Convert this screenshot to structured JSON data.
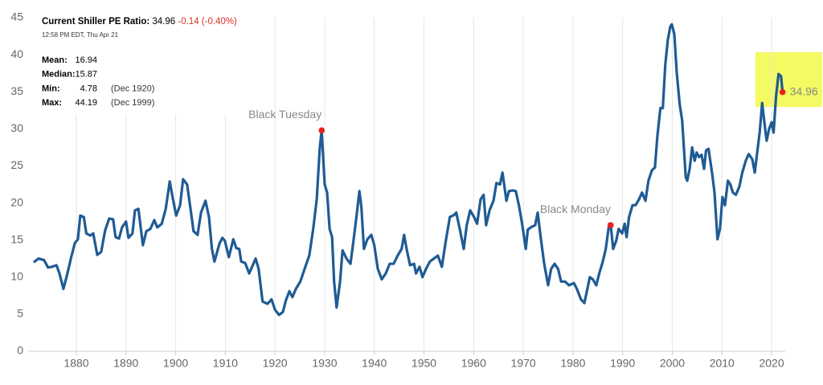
{
  "chart_data": {
    "type": "line",
    "color": "#1f5b94",
    "marker_color": "#e8211d",
    "grid": "x",
    "xlim": [
      1871,
      2024
    ],
    "ylim": [
      0,
      45
    ],
    "xticks": [
      1880,
      1890,
      1900,
      1910,
      1920,
      1930,
      1940,
      1950,
      1960,
      1970,
      1980,
      1990,
      2000,
      2010,
      2020
    ],
    "yticks": [
      0,
      5,
      10,
      15,
      20,
      25,
      30,
      35,
      40,
      45
    ],
    "x": [
      1871.4,
      1872.4,
      1873.5,
      1874.3,
      1875.1,
      1876,
      1876.6,
      1877.4,
      1878.2,
      1878.9,
      1879.7,
      1880.3,
      1880.8,
      1881.5,
      1882,
      1882.8,
      1883.4,
      1884.2,
      1885,
      1885.8,
      1886.6,
      1887.4,
      1887.9,
      1888.6,
      1889.2,
      1890,
      1890.5,
      1891.3,
      1891.8,
      1892.5,
      1893.4,
      1894.1,
      1894.9,
      1895.7,
      1896.3,
      1897.2,
      1898,
      1898.8,
      1899.4,
      1900.1,
      1900.9,
      1901.5,
      1902.3,
      1903.1,
      1903.6,
      1904.4,
      1905.1,
      1906,
      1906.7,
      1907.3,
      1907.8,
      1908.8,
      1909.4,
      1909.9,
      1910.7,
      1911.6,
      1912.2,
      1912.8,
      1913.2,
      1914,
      1914.8,
      1916.1,
      1916.7,
      1917.5,
      1918.5,
      1919.3,
      1920,
      1920.8,
      1921.6,
      1922.2,
      1922.9,
      1923.5,
      1924.2,
      1925.1,
      1926.1,
      1926.9,
      1927.7,
      1928.4,
      1929,
      1929.4,
      1930,
      1930.5,
      1931,
      1931.5,
      1931.9,
      1932.4,
      1933.1,
      1933.6,
      1934.4,
      1935.2,
      1935.8,
      1936.3,
      1937,
      1937.4,
      1937.9,
      1938.6,
      1939.4,
      1940,
      1940.7,
      1941.5,
      1942.3,
      1943.1,
      1943.9,
      1944.7,
      1945.5,
      1946,
      1946.5,
      1947.2,
      1948,
      1948.4,
      1949.1,
      1949.7,
      1950.4,
      1951.2,
      1952,
      1952.8,
      1953.6,
      1954.4,
      1955.2,
      1956.1,
      1956.5,
      1957.3,
      1958,
      1958.6,
      1959.3,
      1960.1,
      1960.7,
      1961.4,
      1962,
      1962.5,
      1963.2,
      1964,
      1964.6,
      1965.3,
      1965.8,
      1966.6,
      1967.1,
      1967.9,
      1968.5,
      1969.2,
      1969.8,
      1970.5,
      1970.9,
      1971.7,
      1972.4,
      1972.9,
      1973.5,
      1974.2,
      1975,
      1975.6,
      1976.3,
      1977,
      1977.6,
      1978.4,
      1979.2,
      1980.2,
      1980.8,
      1981.6,
      1982.3,
      1982.8,
      1983.4,
      1984,
      1984.7,
      1985.3,
      1986,
      1986.6,
      1987.3,
      1987.6,
      1988.1,
      1988.7,
      1989.2,
      1989.9,
      1990.4,
      1990.8,
      1991.3,
      1992,
      1992.6,
      1993.3,
      1993.9,
      1994.6,
      1995.2,
      1995.9,
      1996.5,
      1997,
      1997.6,
      1998.1,
      1998.6,
      1999.1,
      1999.6,
      1999.9,
      2000.4,
      2000.9,
      2001.5,
      2002,
      2002.7,
      2003,
      2003.5,
      2004,
      2004.5,
      2004.9,
      2005.4,
      2005.9,
      2006.4,
      2006.8,
      2007.3,
      2008,
      2008.5,
      2009.1,
      2009.6,
      2010.1,
      2010.6,
      2011.2,
      2011.7,
      2012.2,
      2012.8,
      2013.5,
      2014.1,
      2014.8,
      2015.4,
      2016.1,
      2016.6,
      2017.1,
      2017.6,
      2018.1,
      2018.5,
      2019,
      2019.5,
      2020,
      2020.4,
      2020.9,
      2021.4,
      2021.9,
      2022.2
    ],
    "values": [
      12.0,
      12.5,
      12.3,
      11.3,
      11.4,
      11.6,
      10.5,
      8.4,
      10.5,
      12.5,
      14.6,
      15.1,
      18.3,
      18.1,
      15.9,
      15.6,
      15.9,
      13.0,
      13.4,
      16.3,
      17.9,
      17.8,
      15.4,
      15.2,
      16.7,
      17.5,
      15.3,
      15.9,
      19.0,
      19.2,
      14.3,
      16.2,
      16.5,
      17.7,
      16.7,
      17.2,
      19.2,
      22.9,
      20.7,
      18.3,
      19.7,
      23.2,
      22.5,
      18.7,
      16.2,
      15.7,
      18.7,
      20.3,
      18.1,
      13.8,
      12.1,
      14.5,
      15.3,
      14.9,
      12.7,
      15.1,
      13.9,
      13.8,
      12.1,
      11.9,
      10.5,
      12.5,
      11.1,
      6.7,
      6.4,
      7.0,
      5.6,
      4.9,
      5.3,
      6.9,
      8.1,
      7.3,
      8.4,
      9.4,
      11.4,
      12.9,
      16.5,
      20.5,
      27.3,
      29.8,
      22.5,
      21.4,
      16.5,
      15.4,
      9.4,
      5.9,
      9.4,
      13.6,
      12.5,
      11.8,
      14.9,
      17.6,
      21.6,
      19.4,
      13.8,
      15.1,
      15.7,
      14.3,
      11.1,
      9.7,
      10.5,
      11.8,
      11.8,
      12.9,
      13.8,
      15.7,
      13.8,
      11.6,
      11.8,
      10.5,
      11.4,
      10.0,
      11.1,
      12.1,
      12.5,
      12.9,
      11.4,
      14.9,
      18.1,
      18.4,
      18.7,
      16.2,
      13.8,
      17.0,
      19.0,
      18.1,
      17.2,
      20.5,
      21.1,
      17.0,
      19.0,
      20.3,
      22.7,
      22.5,
      24.1,
      20.3,
      21.6,
      21.7,
      21.6,
      19.4,
      17.0,
      13.8,
      16.4,
      16.8,
      17.0,
      18.7,
      15.4,
      11.8,
      8.9,
      11.1,
      11.8,
      11.1,
      9.4,
      9.4,
      8.9,
      9.2,
      8.4,
      7.0,
      6.5,
      8.1,
      10.0,
      9.7,
      8.9,
      10.5,
      12.1,
      13.8,
      17.2,
      17.0,
      13.8,
      14.9,
      16.5,
      15.9,
      17.2,
      15.4,
      18.1,
      19.7,
      19.7,
      20.5,
      21.4,
      20.3,
      23.0,
      24.4,
      24.8,
      29.0,
      32.8,
      32.8,
      38.7,
      42.0,
      43.8,
      44.1,
      42.8,
      37.6,
      33.3,
      31.1,
      23.5,
      23.0,
      24.6,
      27.5,
      25.7,
      26.8,
      26.2,
      26.5,
      24.6,
      27.1,
      27.3,
      24.1,
      21.4,
      15.1,
      16.5,
      20.8,
      19.7,
      23.0,
      22.5,
      21.4,
      21.1,
      22.2,
      24.1,
      25.7,
      26.6,
      25.9,
      24.1,
      26.8,
      29.5,
      33.5,
      31.1,
      28.4,
      30.0,
      30.9,
      29.5,
      34.4,
      37.4,
      37.1,
      34.96
    ],
    "annotations": [
      {
        "text": "Black Tuesday",
        "x": 1929.4,
        "y": 29.8
      },
      {
        "text": "Black Monday",
        "x": 1987.6,
        "y": 17.0
      }
    ]
  },
  "panel": {
    "title": "Current Shiller PE Ratio:",
    "value": 34.96,
    "change": "-0.14 (-0.40%)",
    "timestamp": "12:58 PM EDT, Thu Apr 21",
    "stats": [
      {
        "label": "Mean:",
        "value": 16.94
      },
      {
        "label": "Median:",
        "value": 15.87
      },
      {
        "label": "Min:",
        "value": 4.78,
        "note": "(Dec 1920)"
      },
      {
        "label": "Max:",
        "value": 44.19,
        "note": "(Dec 1999)"
      }
    ]
  }
}
